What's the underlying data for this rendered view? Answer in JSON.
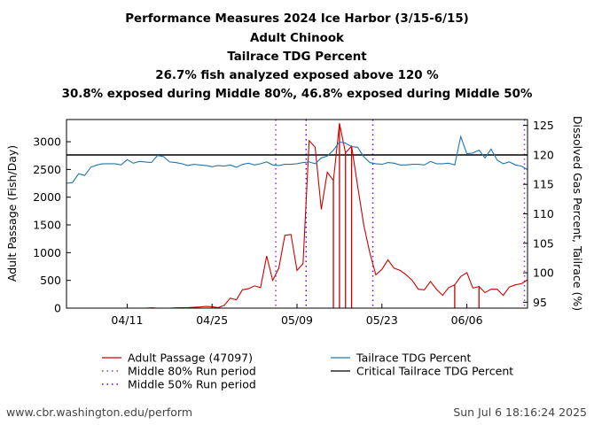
{
  "title_lines": [
    "Performance Measures 2024 Ice Harbor (3/15-6/15)",
    "Adult Chinook",
    "Tailrace TDG Percent",
    "26.7% fish analyzed exposed above 120 %",
    "30.8% exposed during Middle 80%, 46.8% exposed during Middle 50%"
  ],
  "footer": {
    "left": "www.cbr.washington.edu/perform",
    "right": "Sun Jul  6 18:16:24 2025"
  },
  "chart_data": {
    "type": "line",
    "x_start": "2024-04-01",
    "x_end": "2024-06-15",
    "x_tick_labels": [
      "04/11",
      "04/25",
      "05/09",
      "05/23",
      "06/06"
    ],
    "x_tick_days": [
      10,
      24,
      38,
      52,
      66
    ],
    "ylabel_left": "Adult Passage (Fish/Day)",
    "ylabel_right": "Dissolved Gas Percent, Tailrace (%)",
    "ylim_left": [
      0,
      3400
    ],
    "yticks_left": [
      "0",
      "500",
      "1000",
      "1500",
      "2000",
      "2500",
      "3000"
    ],
    "ylim_right": [
      94,
      126
    ],
    "yticks_right": [
      "95",
      "100",
      "105",
      "110",
      "115",
      "120",
      "125"
    ],
    "critical_tdg": 120,
    "middle80_days": [
      34.5,
      75.5
    ],
    "middle50_days": [
      39.5,
      50.5
    ],
    "passage_bar_days": [
      44,
      45,
      46,
      47,
      64,
      68
    ],
    "series": [
      {
        "name": "Adult Passage (47097)",
        "axis": "left",
        "color": "#cc0000",
        "values": [
          0,
          0,
          0,
          0,
          0,
          0,
          0,
          0,
          0,
          0,
          0,
          0,
          0,
          0,
          5,
          0,
          0,
          0,
          5,
          8,
          10,
          15,
          20,
          30,
          25,
          10,
          50,
          180,
          150,
          330,
          350,
          400,
          370,
          940,
          500,
          720,
          1310,
          1330,
          680,
          800,
          3020,
          2900,
          1780,
          2450,
          2300,
          3330,
          2800,
          2920,
          2200,
          1500,
          1000,
          600,
          700,
          870,
          720,
          680,
          600,
          500,
          340,
          330,
          480,
          340,
          230,
          370,
          420,
          570,
          640,
          360,
          390,
          280,
          340,
          340,
          230,
          380,
          420,
          440,
          510
        ]
      },
      {
        "name": "Tailrace TDG Percent",
        "axis": "right",
        "color": "#1f77b4",
        "values": [
          115.2,
          115.3,
          116.8,
          116.5,
          117.9,
          118.3,
          118.5,
          118.5,
          118.5,
          118.3,
          119.2,
          118.6,
          118.9,
          118.8,
          118.7,
          119.9,
          119.7,
          118.8,
          118.7,
          118.5,
          118.2,
          118.4,
          118.3,
          118.2,
          118.0,
          118.2,
          118.1,
          118.3,
          117.9,
          118.4,
          118.6,
          118.3,
          118.5,
          118.8,
          118.3,
          118.2,
          118.4,
          118.4,
          118.5,
          118.7,
          118.8,
          118.5,
          119.5,
          119.8,
          120.8,
          122.2,
          122.0,
          121.4,
          121.3,
          119.7,
          118.7,
          118.5,
          118.4,
          118.7,
          118.6,
          118.3,
          118.3,
          118.4,
          118.4,
          118.3,
          118.9,
          118.5,
          118.5,
          118.6,
          118.3,
          123.1,
          120.2,
          120.3,
          120.8,
          119.5,
          121.0,
          119.1,
          118.5,
          118.8,
          118.3,
          118.1,
          117.5
        ]
      }
    ],
    "legend": [
      {
        "label": "Adult Passage (47097)",
        "style": "red-line"
      },
      {
        "label": "Middle 80% Run period",
        "style": "purple-dotted"
      },
      {
        "label": "Middle 50% Run period",
        "style": "purple-dotted"
      },
      {
        "label": "Tailrace TDG Percent",
        "style": "blue-line"
      },
      {
        "label": "Critical Tailrace TDG Percent",
        "style": "black-line"
      }
    ]
  }
}
